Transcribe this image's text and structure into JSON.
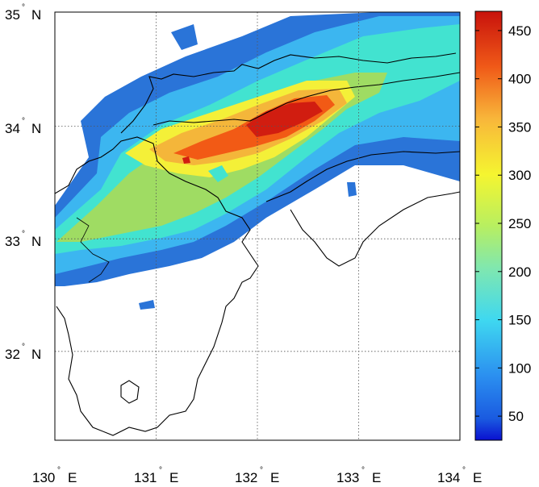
{
  "map": {
    "lat_labels": [
      {
        "value": "35",
        "suffix": "N"
      },
      {
        "value": "34",
        "suffix": "N"
      },
      {
        "value": "33",
        "suffix": "N"
      },
      {
        "value": "32",
        "suffix": "N"
      }
    ],
    "lon_labels": [
      {
        "value": "130",
        "suffix": "E"
      },
      {
        "value": "131",
        "suffix": "E"
      },
      {
        "value": "132",
        "suffix": "E"
      },
      {
        "value": "133",
        "suffix": "E"
      },
      {
        "value": "134",
        "suffix": "E"
      }
    ],
    "degree_symbol": "°",
    "lon_range": [
      130,
      134
    ],
    "lat_range": [
      31.25,
      35
    ],
    "gridlines": "dotted"
  },
  "colorbar": {
    "ticks": [
      "50",
      "100",
      "150",
      "200",
      "250",
      "300",
      "350",
      "400",
      "450"
    ],
    "range": [
      25,
      470
    ],
    "colormap": "jet"
  },
  "field": {
    "peak_value": 470,
    "peak_location": "near 132 E, 34 N",
    "colors": {
      "very_high": "#d11d10",
      "high": "#f25a15",
      "mid_high": "#f4b63a",
      "mid": "#f4f038",
      "mid_low": "#9fdc63",
      "low": "#42e3d0",
      "lower": "#3cb6f0",
      "lowest": "#2a74d8"
    }
  }
}
